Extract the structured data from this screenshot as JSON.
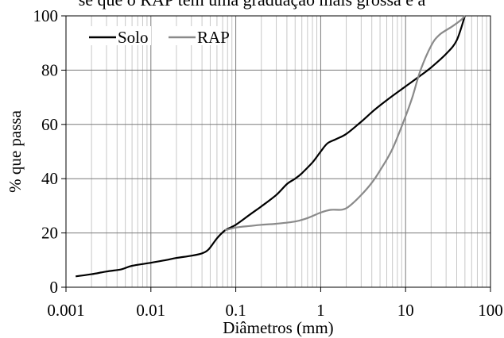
{
  "top_text": "se que o RAP tem uma graduação mais grossa e a",
  "chart_data": {
    "type": "line",
    "xscale": "log",
    "xlim": [
      0.001,
      100
    ],
    "ylim": [
      0,
      100
    ],
    "xticks": [
      "0.001",
      "0.01",
      "0.1",
      "1",
      "10",
      "100"
    ],
    "yticks": [
      "0",
      "20",
      "40",
      "60",
      "80",
      "100"
    ],
    "xlabel": "Diâmetros (mm)",
    "ylabel": "% que passa",
    "grid": true,
    "legend": "top-left",
    "series": [
      {
        "name": "Solo",
        "color": "#000000",
        "points": [
          [
            0.0013,
            4
          ],
          [
            0.002,
            4.8
          ],
          [
            0.003,
            5.8
          ],
          [
            0.0045,
            6.6
          ],
          [
            0.006,
            7.9
          ],
          [
            0.01,
            9
          ],
          [
            0.015,
            10
          ],
          [
            0.02,
            10.8
          ],
          [
            0.03,
            11.6
          ],
          [
            0.04,
            12.5
          ],
          [
            0.048,
            14
          ],
          [
            0.06,
            18
          ],
          [
            0.075,
            21
          ],
          [
            0.1,
            23
          ],
          [
            0.15,
            27
          ],
          [
            0.2,
            29.8
          ],
          [
            0.3,
            34
          ],
          [
            0.4,
            38
          ],
          [
            0.5,
            40
          ],
          [
            0.6,
            42
          ],
          [
            0.8,
            46
          ],
          [
            1,
            50
          ],
          [
            1.2,
            53
          ],
          [
            1.5,
            54.5
          ],
          [
            2,
            56.5
          ],
          [
            3,
            61
          ],
          [
            4,
            64.5
          ],
          [
            5,
            67
          ],
          [
            7,
            70.5
          ],
          [
            10,
            74
          ],
          [
            15,
            78
          ],
          [
            20,
            81
          ],
          [
            30,
            86
          ],
          [
            40,
            91
          ],
          [
            50,
            100
          ]
        ]
      },
      {
        "name": "RAP",
        "color": "#8a8a8a",
        "points": [
          [
            0.075,
            21
          ],
          [
            0.1,
            22
          ],
          [
            0.15,
            22.6
          ],
          [
            0.2,
            23
          ],
          [
            0.3,
            23.4
          ],
          [
            0.5,
            24.2
          ],
          [
            0.7,
            25.5
          ],
          [
            1,
            27.5
          ],
          [
            1.3,
            28.5
          ],
          [
            1.8,
            28.6
          ],
          [
            2.2,
            30
          ],
          [
            3,
            34
          ],
          [
            4,
            38.5
          ],
          [
            5,
            43
          ],
          [
            7,
            51
          ],
          [
            10,
            63
          ],
          [
            12,
            70
          ],
          [
            15,
            80
          ],
          [
            20,
            89
          ],
          [
            25,
            93
          ],
          [
            35,
            96
          ],
          [
            45,
            98.5
          ],
          [
            50,
            100
          ]
        ]
      }
    ]
  }
}
